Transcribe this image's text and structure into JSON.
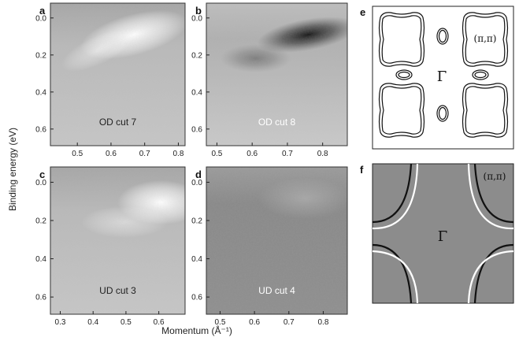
{
  "figure": {
    "ylabel": "Binding energy (eV)",
    "xlabel": "Momentum (Å⁻¹)",
    "gamma": "Γ",
    "pipi": "(π,π)",
    "bg_gray": "#8c8c8c"
  },
  "panels": [
    {
      "id": "a",
      "cut": "OD cut 7",
      "cut_color": "#222222",
      "xticks": [
        "0.5",
        "0.6",
        "0.7",
        "0.8"
      ],
      "xtick_values": [
        0.5,
        0.6,
        0.7,
        0.8
      ],
      "xlim": [
        0.42,
        0.82
      ],
      "yticks": [
        "0.0",
        "0.2",
        "0.4",
        "0.6"
      ],
      "ytick_values": [
        0.0,
        0.2,
        0.4,
        0.6
      ],
      "ylim": [
        -0.08,
        0.69
      ],
      "spot": "bright"
    },
    {
      "id": "b",
      "cut": "OD cut 8",
      "cut_color": "#ffffff",
      "xticks": [
        "0.5",
        "0.6",
        "0.7",
        "0.8"
      ],
      "xtick_values": [
        0.5,
        0.6,
        0.7,
        0.8
      ],
      "xlim": [
        0.47,
        0.87
      ],
      "yticks": [
        "0.0",
        "0.2",
        "0.4",
        "0.6"
      ],
      "ytick_values": [
        0.0,
        0.2,
        0.4,
        0.6
      ],
      "ylim": [
        -0.08,
        0.69
      ],
      "spot": "dark"
    },
    {
      "id": "c",
      "cut": "UD cut 3",
      "cut_color": "#222222",
      "xticks": [
        "0.3",
        "0.4",
        "0.5",
        "0.6"
      ],
      "xtick_values": [
        0.3,
        0.4,
        0.5,
        0.6
      ],
      "xlim": [
        0.27,
        0.68
      ],
      "yticks": [
        "0.0",
        "0.2",
        "0.4",
        "0.6"
      ],
      "ytick_values": [
        0.0,
        0.2,
        0.4,
        0.6
      ],
      "ylim": [
        -0.08,
        0.69
      ],
      "spot": "bright-right"
    },
    {
      "id": "d",
      "cut": "UD cut 4",
      "cut_color": "#ffffff",
      "xticks": [
        "0.5",
        "0.6",
        "0.7",
        "0.8"
      ],
      "xtick_values": [
        0.5,
        0.6,
        0.7,
        0.8
      ],
      "xlim": [
        0.46,
        0.87
      ],
      "yticks": [
        "0.0",
        "0.2",
        "0.4",
        "0.6"
      ],
      "ytick_values": [
        0.0,
        0.2,
        0.4,
        0.6
      ],
      "ylim": [
        -0.08,
        0.69
      ],
      "spot": "dim"
    }
  ],
  "side_panels": [
    {
      "id": "e"
    },
    {
      "id": "f"
    }
  ]
}
